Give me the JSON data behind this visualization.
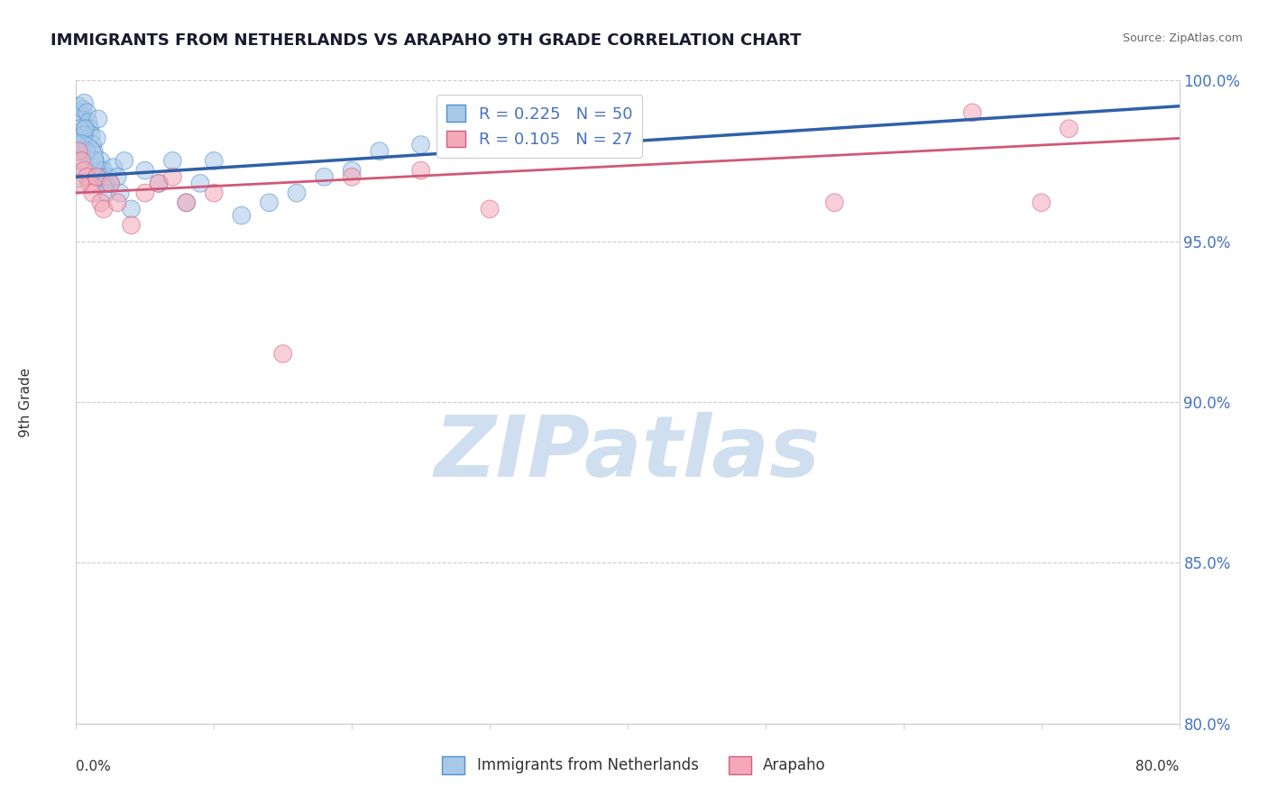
{
  "title": "IMMIGRANTS FROM NETHERLANDS VS ARAPAHO 9TH GRADE CORRELATION CHART",
  "source": "Source: ZipAtlas.com",
  "ylabel": "9th Grade",
  "xmin": 0.0,
  "xmax": 80.0,
  "ymin": 80.0,
  "ymax": 100.0,
  "yticks": [
    80.0,
    85.0,
    90.0,
    95.0,
    100.0
  ],
  "xticks": [
    0.0,
    10.0,
    20.0,
    30.0,
    40.0,
    50.0,
    60.0,
    70.0,
    80.0
  ],
  "blue_R": 0.225,
  "blue_N": 50,
  "pink_R": 0.105,
  "pink_N": 27,
  "blue_color": "#a8c8e8",
  "pink_color": "#f4a8b8",
  "blue_edge_color": "#5090c8",
  "pink_edge_color": "#d06080",
  "blue_line_color": "#3060a8",
  "pink_line_color": "#d05878",
  "tick_color": "#4472C4",
  "watermark": "ZIPatlas",
  "watermark_color": "#d0dff0",
  "blue_scatter_x": [
    0.2,
    0.3,
    0.4,
    0.5,
    0.6,
    0.7,
    0.8,
    0.9,
    1.0,
    1.1,
    1.2,
    1.3,
    1.4,
    1.5,
    1.6,
    1.7,
    1.8,
    1.9,
    2.0,
    2.1,
    2.2,
    2.3,
    2.5,
    2.7,
    3.0,
    3.2,
    3.5,
    4.0,
    5.0,
    6.0,
    7.0,
    8.0,
    9.0,
    10.0,
    12.0,
    14.0,
    16.0,
    18.0,
    20.0,
    22.0,
    25.0,
    0.15,
    0.25,
    0.35,
    0.45,
    0.55,
    0.65,
    0.75,
    0.1,
    0.05
  ],
  "blue_scatter_y": [
    99.2,
    99.0,
    98.8,
    99.1,
    99.3,
    98.5,
    99.0,
    98.7,
    98.5,
    98.3,
    98.0,
    97.8,
    97.5,
    98.2,
    98.8,
    97.2,
    97.5,
    97.0,
    97.2,
    96.8,
    96.5,
    97.0,
    96.8,
    97.3,
    97.0,
    96.5,
    97.5,
    96.0,
    97.2,
    96.8,
    97.5,
    96.2,
    96.8,
    97.5,
    95.8,
    96.2,
    96.5,
    97.0,
    97.2,
    97.8,
    98.0,
    98.2,
    98.5,
    98.0,
    97.8,
    98.3,
    98.5,
    97.8,
    98.0,
    97.5
  ],
  "blue_scatter_sizes": [
    200,
    200,
    200,
    200,
    200,
    200,
    200,
    200,
    200,
    200,
    200,
    200,
    200,
    200,
    200,
    200,
    200,
    200,
    200,
    200,
    200,
    200,
    200,
    200,
    200,
    200,
    200,
    200,
    200,
    200,
    200,
    200,
    200,
    200,
    200,
    200,
    200,
    200,
    200,
    200,
    200,
    200,
    200,
    200,
    200,
    200,
    200,
    200,
    200,
    1800
  ],
  "pink_scatter_x": [
    0.2,
    0.4,
    0.6,
    0.8,
    1.0,
    1.2,
    1.5,
    1.8,
    2.0,
    2.5,
    3.0,
    4.0,
    5.0,
    6.0,
    7.0,
    8.0,
    10.0,
    15.0,
    20.0,
    25.0,
    30.0,
    40.0,
    55.0,
    65.0,
    70.0,
    72.0,
    0.3
  ],
  "pink_scatter_y": [
    97.8,
    97.5,
    97.2,
    97.0,
    96.8,
    96.5,
    97.0,
    96.2,
    96.0,
    96.8,
    96.2,
    95.5,
    96.5,
    96.8,
    97.0,
    96.2,
    96.5,
    91.5,
    97.0,
    97.2,
    96.0,
    99.2,
    96.2,
    99.0,
    96.2,
    98.5,
    96.8
  ],
  "pink_scatter_sizes": [
    200,
    200,
    200,
    200,
    200,
    200,
    200,
    200,
    200,
    200,
    200,
    200,
    200,
    200,
    200,
    200,
    200,
    200,
    200,
    200,
    200,
    200,
    200,
    200,
    200,
    200,
    200
  ],
  "blue_line_x0": 0.0,
  "blue_line_x1": 80.0,
  "blue_line_y0": 97.0,
  "blue_line_y1": 99.2,
  "pink_line_x0": 0.0,
  "pink_line_x1": 80.0,
  "pink_line_y0": 96.5,
  "pink_line_y1": 98.2
}
